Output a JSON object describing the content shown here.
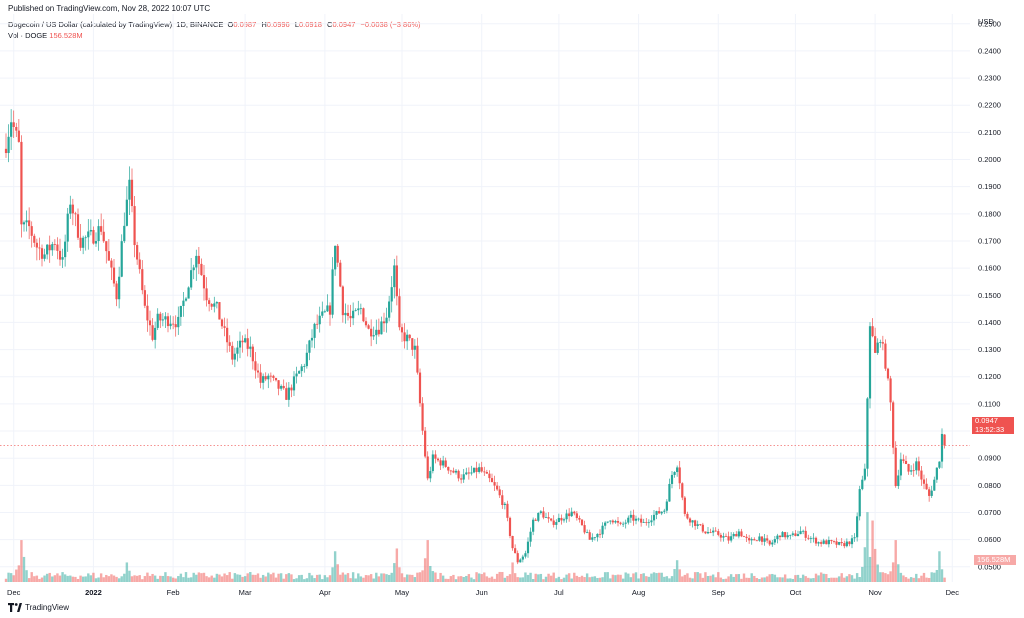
{
  "header": {
    "published": "Published on TradingView.com, Nov 28, 2022 10:07 UTC",
    "symbol": "Dogecoin / US Dollar (calculated by TradingView), 1D, BINANCE",
    "ohlc": [
      {
        "label": "O",
        "value": "0.0987"
      },
      {
        "label": "H",
        "value": "0.0996"
      },
      {
        "label": "L",
        "value": "0.0918"
      },
      {
        "label": "C",
        "value": "0.0947"
      }
    ],
    "change": "−0.0038 (−3.86%)",
    "volume_label": "Vol · DOGE",
    "volume_value": "156.528M"
  },
  "axis": {
    "unit": "USD",
    "price_tag_value": "0.0947",
    "price_tag_countdown": "13:52:33",
    "volume_tag": "156.528M"
  },
  "footer": {
    "brand": "TradingView"
  },
  "colors": {
    "up": "#26a69a",
    "down": "#ef5350",
    "grid": "#f0f3fa",
    "text": "#131722"
  },
  "chart_data": {
    "type": "candlestick",
    "title": "Dogecoin / US Dollar (calculated by TradingView), 1D, BINANCE",
    "ylabel": "USD",
    "ylim": [
      0.0444,
      0.2536
    ],
    "y_ticks": [
      "0.2500",
      "0.2400",
      "0.2300",
      "0.2200",
      "0.2100",
      "0.2000",
      "0.1900",
      "0.1800",
      "0.1700",
      "0.1600",
      "0.1500",
      "0.1400",
      "0.1300",
      "0.1200",
      "0.1100",
      "0.1000",
      "0.0900",
      "0.0800",
      "0.0700",
      "0.0600",
      "0.0500"
    ],
    "x_ticks": [
      {
        "label": "Dec",
        "date": "2021-12-01"
      },
      {
        "label": "2022",
        "date": "2022-01-01"
      },
      {
        "label": "Feb",
        "date": "2022-02-01"
      },
      {
        "label": "Mar",
        "date": "2022-03-01"
      },
      {
        "label": "Apr",
        "date": "2022-04-01"
      },
      {
        "label": "May",
        "date": "2022-05-01"
      },
      {
        "label": "Jun",
        "date": "2022-06-01"
      },
      {
        "label": "Jul",
        "date": "2022-07-01"
      },
      {
        "label": "Aug",
        "date": "2022-08-01"
      },
      {
        "label": "Sep",
        "date": "2022-09-01"
      },
      {
        "label": "Oct",
        "date": "2022-10-01"
      },
      {
        "label": "Nov",
        "date": "2022-11-01"
      },
      {
        "label": "Dec",
        "date": "2022-12-01"
      }
    ],
    "x_range": [
      "2021-11-28",
      "2022-12-04"
    ],
    "last_price": 0.0947,
    "close_path": [
      {
        "date": "2021-11-28",
        "close": 0.206
      },
      {
        "date": "2021-11-30",
        "close": 0.215
      },
      {
        "date": "2021-12-03",
        "close": 0.205
      },
      {
        "date": "2021-12-04",
        "close": 0.175
      },
      {
        "date": "2021-12-07",
        "close": 0.175
      },
      {
        "date": "2021-12-10",
        "close": 0.168
      },
      {
        "date": "2021-12-13",
        "close": 0.165
      },
      {
        "date": "2021-12-17",
        "close": 0.17
      },
      {
        "date": "2021-12-20",
        "close": 0.162
      },
      {
        "date": "2021-12-23",
        "close": 0.185
      },
      {
        "date": "2021-12-27",
        "close": 0.17
      },
      {
        "date": "2022-01-01",
        "close": 0.172
      },
      {
        "date": "2022-01-04",
        "close": 0.175
      },
      {
        "date": "2022-01-07",
        "close": 0.162
      },
      {
        "date": "2022-01-10",
        "close": 0.15
      },
      {
        "date": "2022-01-13",
        "close": 0.178
      },
      {
        "date": "2022-01-15",
        "close": 0.19
      },
      {
        "date": "2022-01-17",
        "close": 0.17
      },
      {
        "date": "2022-01-21",
        "close": 0.145
      },
      {
        "date": "2022-01-24",
        "close": 0.135
      },
      {
        "date": "2022-01-26",
        "close": 0.141
      },
      {
        "date": "2022-01-31",
        "close": 0.141
      },
      {
        "date": "2022-02-03",
        "close": 0.14
      },
      {
        "date": "2022-02-07",
        "close": 0.155
      },
      {
        "date": "2022-02-10",
        "close": 0.166
      },
      {
        "date": "2022-02-14",
        "close": 0.15
      },
      {
        "date": "2022-02-18",
        "close": 0.145
      },
      {
        "date": "2022-02-22",
        "close": 0.133
      },
      {
        "date": "2022-02-24",
        "close": 0.127
      },
      {
        "date": "2022-02-28",
        "close": 0.133
      },
      {
        "date": "2022-03-03",
        "close": 0.13
      },
      {
        "date": "2022-03-07",
        "close": 0.118
      },
      {
        "date": "2022-03-10",
        "close": 0.12
      },
      {
        "date": "2022-03-14",
        "close": 0.116
      },
      {
        "date": "2022-03-17",
        "close": 0.113
      },
      {
        "date": "2022-03-21",
        "close": 0.12
      },
      {
        "date": "2022-03-24",
        "close": 0.125
      },
      {
        "date": "2022-03-28",
        "close": 0.138
      },
      {
        "date": "2022-03-31",
        "close": 0.142
      },
      {
        "date": "2022-04-03",
        "close": 0.145
      },
      {
        "date": "2022-04-05",
        "close": 0.17
      },
      {
        "date": "2022-04-08",
        "close": 0.145
      },
      {
        "date": "2022-04-11",
        "close": 0.141
      },
      {
        "date": "2022-04-15",
        "close": 0.145
      },
      {
        "date": "2022-04-18",
        "close": 0.137
      },
      {
        "date": "2022-04-22",
        "close": 0.138
      },
      {
        "date": "2022-04-25",
        "close": 0.143
      },
      {
        "date": "2022-04-28",
        "close": 0.16
      },
      {
        "date": "2022-04-30",
        "close": 0.136
      },
      {
        "date": "2022-05-03",
        "close": 0.134
      },
      {
        "date": "2022-05-06",
        "close": 0.13
      },
      {
        "date": "2022-05-09",
        "close": 0.1
      },
      {
        "date": "2022-05-11",
        "close": 0.082
      },
      {
        "date": "2022-05-13",
        "close": 0.09
      },
      {
        "date": "2022-05-17",
        "close": 0.088
      },
      {
        "date": "2022-05-21",
        "close": 0.085
      },
      {
        "date": "2022-05-24",
        "close": 0.083
      },
      {
        "date": "2022-05-27",
        "close": 0.084
      },
      {
        "date": "2022-05-31",
        "close": 0.086
      },
      {
        "date": "2022-06-04",
        "close": 0.082
      },
      {
        "date": "2022-06-07",
        "close": 0.078
      },
      {
        "date": "2022-06-10",
        "close": 0.072
      },
      {
        "date": "2022-06-13",
        "close": 0.057
      },
      {
        "date": "2022-06-15",
        "close": 0.052
      },
      {
        "date": "2022-06-18",
        "close": 0.055
      },
      {
        "date": "2022-06-21",
        "close": 0.067
      },
      {
        "date": "2022-06-24",
        "close": 0.07
      },
      {
        "date": "2022-06-28",
        "close": 0.066
      },
      {
        "date": "2022-07-02",
        "close": 0.068
      },
      {
        "date": "2022-07-06",
        "close": 0.07
      },
      {
        "date": "2022-07-10",
        "close": 0.065
      },
      {
        "date": "2022-07-13",
        "close": 0.06
      },
      {
        "date": "2022-07-17",
        "close": 0.063
      },
      {
        "date": "2022-07-21",
        "close": 0.068
      },
      {
        "date": "2022-07-25",
        "close": 0.065
      },
      {
        "date": "2022-07-29",
        "close": 0.068
      },
      {
        "date": "2022-08-03",
        "close": 0.066
      },
      {
        "date": "2022-08-07",
        "close": 0.069
      },
      {
        "date": "2022-08-11",
        "close": 0.071
      },
      {
        "date": "2022-08-14",
        "close": 0.084
      },
      {
        "date": "2022-08-16",
        "close": 0.088
      },
      {
        "date": "2022-08-19",
        "close": 0.069
      },
      {
        "date": "2022-08-23",
        "close": 0.066
      },
      {
        "date": "2022-08-27",
        "close": 0.063
      },
      {
        "date": "2022-09-01",
        "close": 0.062
      },
      {
        "date": "2022-09-05",
        "close": 0.06
      },
      {
        "date": "2022-09-09",
        "close": 0.063
      },
      {
        "date": "2022-09-13",
        "close": 0.059
      },
      {
        "date": "2022-09-17",
        "close": 0.061
      },
      {
        "date": "2022-09-21",
        "close": 0.058
      },
      {
        "date": "2022-09-25",
        "close": 0.062
      },
      {
        "date": "2022-09-29",
        "close": 0.061
      },
      {
        "date": "2022-10-03",
        "close": 0.063
      },
      {
        "date": "2022-10-06",
        "close": 0.061
      },
      {
        "date": "2022-10-10",
        "close": 0.059
      },
      {
        "date": "2022-10-14",
        "close": 0.059
      },
      {
        "date": "2022-10-19",
        "close": 0.058
      },
      {
        "date": "2022-10-24",
        "close": 0.06
      },
      {
        "date": "2022-10-26",
        "close": 0.078
      },
      {
        "date": "2022-10-28",
        "close": 0.085
      },
      {
        "date": "2022-10-30",
        "close": 0.14
      },
      {
        "date": "2022-11-01",
        "close": 0.128
      },
      {
        "date": "2022-11-03",
        "close": 0.135
      },
      {
        "date": "2022-11-05",
        "close": 0.125
      },
      {
        "date": "2022-11-07",
        "close": 0.11
      },
      {
        "date": "2022-11-09",
        "close": 0.08
      },
      {
        "date": "2022-11-11",
        "close": 0.09
      },
      {
        "date": "2022-11-14",
        "close": 0.085
      },
      {
        "date": "2022-11-17",
        "close": 0.088
      },
      {
        "date": "2022-11-20",
        "close": 0.08
      },
      {
        "date": "2022-11-22",
        "close": 0.076
      },
      {
        "date": "2022-11-24",
        "close": 0.082
      },
      {
        "date": "2022-11-26",
        "close": 0.09
      },
      {
        "date": "2022-11-27",
        "close": 0.0987
      },
      {
        "date": "2022-11-28",
        "close": 0.0947
      }
    ],
    "volume": {
      "last_value_millions": 156.528,
      "unit": "DOGE",
      "spikes_millions": [
        {
          "date": "2021-12-04",
          "value": 1500
        },
        {
          "date": "2022-01-14",
          "value": 700
        },
        {
          "date": "2022-04-05",
          "value": 1100
        },
        {
          "date": "2022-04-29",
          "value": 1200
        },
        {
          "date": "2022-05-11",
          "value": 1500
        },
        {
          "date": "2022-06-13",
          "value": 700
        },
        {
          "date": "2022-08-16",
          "value": 780
        },
        {
          "date": "2022-10-29",
          "value": 2500
        },
        {
          "date": "2022-10-31",
          "value": 2200
        },
        {
          "date": "2022-11-09",
          "value": 1500
        },
        {
          "date": "2022-11-26",
          "value": 1100
        }
      ],
      "baseline_millions": 200,
      "ylim_millions": [
        0,
        3400
      ]
    }
  }
}
